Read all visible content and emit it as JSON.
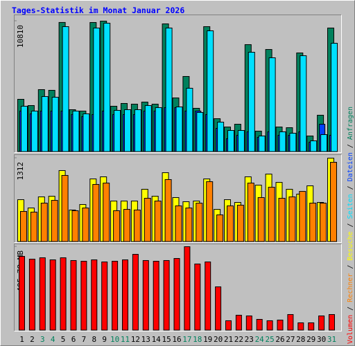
{
  "chart_data": [
    {
      "type": "bar",
      "title": "Tages-Statistik im Monat Januar 2026",
      "ylim": [
        0,
        10810
      ],
      "yticks": [
        10810
      ],
      "grid": false,
      "series": [
        {
          "name": "Anfragen",
          "color": "#00805c",
          "values": [
            4347,
            3832,
            5148,
            5091,
            10700,
            3489,
            3375,
            10696,
            10810,
            3775,
            4004,
            3947,
            4118,
            3947,
            10582,
            4462,
            6235,
            3604,
            10353,
            2746,
            2059,
            2288,
            8866,
            1716,
            8466,
            2059,
            2002,
            8180,
            1316,
            3032,
            10239
          ]
        },
        {
          "name": "Dateien",
          "color": "#0040ff",
          "values": [
            3375,
            3146,
            3375,
            3375,
            3375,
            3089,
            2917,
            3089,
            3375,
            3089,
            3089,
            3089,
            3375,
            3375,
            3661,
            3661,
            3375,
            3375,
            3089,
            1945,
            1087,
            1373,
            1659,
            1201,
            1659,
            1373,
            1373,
            1659,
            801,
            2288,
            1373
          ]
        },
        {
          "name": "Seiten",
          "color": "#00e0ff",
          "values": [
            3775,
            3375,
            4576,
            4519,
            10353,
            3375,
            3146,
            10239,
            10639,
            3432,
            3489,
            3489,
            3832,
            3661,
            10239,
            3718,
            5262,
            3260,
            10010,
            2460,
            1773,
            1773,
            8237,
            1316,
            7779,
            1659,
            1544,
            7951,
            915,
            1430,
            8980
          ]
        }
      ]
    },
    {
      "type": "bar",
      "ylim": [
        0,
        1312
      ],
      "yticks": [
        1312
      ],
      "grid": false,
      "series": [
        {
          "name": "Besuche",
          "color": "#ffff00",
          "values": [
            661,
            531,
            705,
            715,
            1117,
            499,
            585,
            986,
            1019,
            640,
            640,
            640,
            824,
            715,
            1084,
            694,
            629,
            640,
            986,
            509,
            661,
            618,
            1019,
            889,
            1062,
            932,
            824,
            748,
            878,
            618,
            1312
          ]
        },
        {
          "name": "Rechner",
          "color": "#ff8000",
          "values": [
            477,
            466,
            607,
            650,
            1041,
            488,
            531,
            900,
            921,
            488,
            509,
            499,
            683,
            640,
            976,
            564,
            531,
            607,
            943,
            423,
            564,
            575,
            921,
            694,
            856,
            683,
            705,
            791,
            607,
            607,
            1247
          ]
        }
      ]
    },
    {
      "type": "bar",
      "ylim": [
        0,
        405.78
      ],
      "yticks": [
        {
          "value": 405.78,
          "label": "405.78 MB"
        }
      ],
      "grid": false,
      "categories": [
        "1",
        "2",
        "3",
        "4",
        "5",
        "6",
        "7",
        "8",
        "9",
        "10",
        "11",
        "12",
        "13",
        "14",
        "15",
        "16",
        "17",
        "18",
        "19",
        "20",
        "21",
        "22",
        "23",
        "24",
        "25",
        "26",
        "27",
        "28",
        "29",
        "30",
        "31"
      ],
      "category_colors": [
        "#000000",
        "#000000",
        "#00805c",
        "#00805c",
        "#000000",
        "#000000",
        "#000000",
        "#000000",
        "#000000",
        "#00805c",
        "#00805c",
        "#000000",
        "#000000",
        "#000000",
        "#000000",
        "#000000",
        "#00805c",
        "#00805c",
        "#000000",
        "#000000",
        "#000000",
        "#000000",
        "#000000",
        "#00805c",
        "#00805c",
        "#000000",
        "#000000",
        "#000000",
        "#000000",
        "#000000",
        "#00805c"
      ],
      "legend_separator": "/",
      "series": [
        {
          "name": "Volumen",
          "color": "#ff0000",
          "values": [
            358.9,
            345.5,
            352.2,
            342.1,
            352.2,
            338.8,
            335.4,
            342.1,
            332.0,
            335.4,
            342.1,
            368.9,
            338.8,
            335.4,
            338.8,
            348.8,
            405.78,
            322.0,
            332.0,
            211.3,
            47.0,
            73.8,
            70.4,
            53.7,
            47.0,
            50.3,
            77.1,
            36.9,
            36.9,
            70.4,
            77.1
          ]
        }
      ]
    }
  ]
}
